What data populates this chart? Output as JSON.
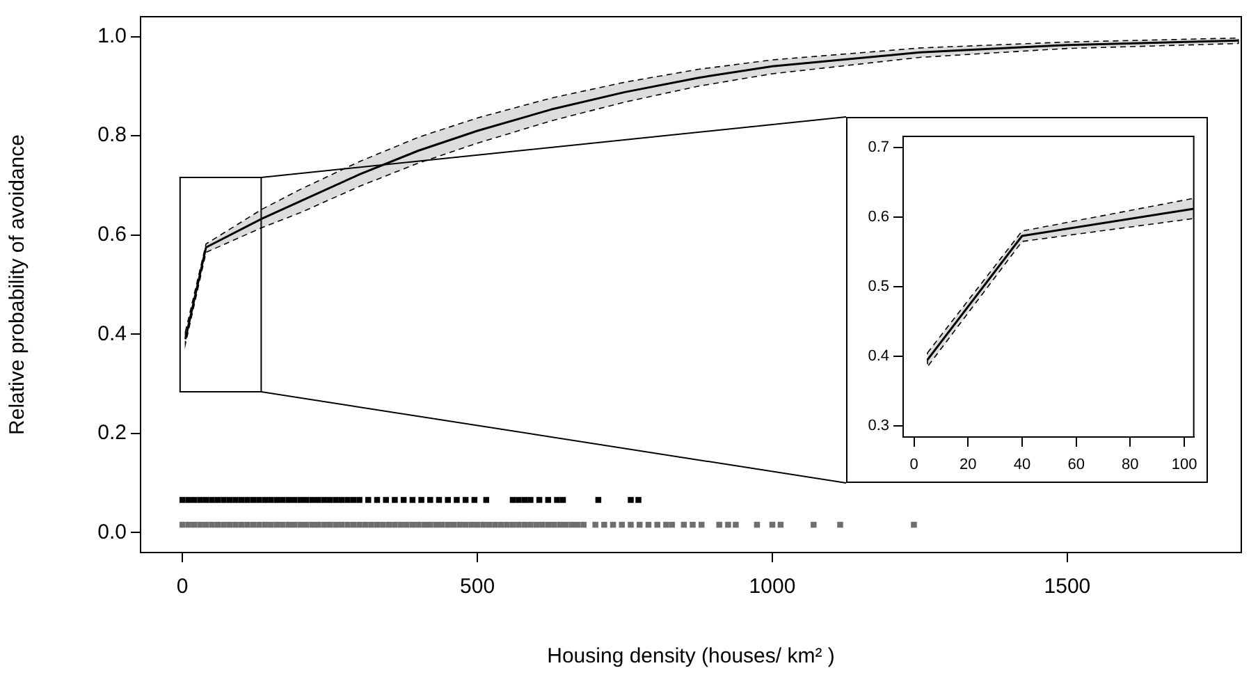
{
  "chart_data": [
    {
      "type": "line",
      "xlabel": "Housing density (houses/ km² )",
      "ylabel": "Relative probability of avoidance",
      "xlim": [
        -71,
        1795
      ],
      "ylim": [
        -0.04,
        1.04
      ],
      "xticks": [
        0,
        500,
        1000,
        1500
      ],
      "yticks": [
        {
          "value": 0,
          "label": "0.0"
        },
        0.2,
        0.4,
        0.6,
        0.8,
        {
          "value": 1,
          "label": "1.0"
        }
      ],
      "legend": false,
      "series": [
        {
          "color": "#000000",
          "x": [
            5,
            40,
            135,
            200,
            300,
            400,
            500,
            625,
            750,
            875,
            1000,
            1250,
            1500,
            1790
          ],
          "values": [
            0.39,
            0.575,
            0.633,
            0.668,
            0.722,
            0.77,
            0.81,
            0.853,
            0.888,
            0.917,
            0.94,
            0.968,
            0.983,
            0.992
          ],
          "lower": [
            0.38,
            0.565,
            0.615,
            0.645,
            0.698,
            0.745,
            0.785,
            0.83,
            0.868,
            0.9,
            0.925,
            0.958,
            0.976,
            0.986
          ],
          "upper": [
            0.405,
            0.582,
            0.652,
            0.692,
            0.748,
            0.797,
            0.836,
            0.876,
            0.908,
            0.934,
            0.953,
            0.977,
            0.989,
            0.997
          ]
        },
        {
          "type": "scatter",
          "color": "#000000",
          "x": [
            0,
            10,
            20,
            30,
            40,
            50,
            60,
            70,
            80,
            90,
            100,
            110,
            120,
            130,
            140,
            150,
            160,
            170,
            180,
            190,
            200,
            210,
            220,
            230,
            240,
            250,
            260,
            270,
            280,
            290,
            300,
            315,
            330,
            345,
            360,
            375,
            390,
            405,
            420,
            435,
            450,
            465,
            480,
            495,
            515,
            560,
            570,
            580,
            590,
            605,
            620,
            635,
            645,
            705,
            760,
            773
          ],
          "values": [
            0.066,
            0.066,
            0.066,
            0.066,
            0.066,
            0.066,
            0.066,
            0.066,
            0.066,
            0.066,
            0.066,
            0.066,
            0.066,
            0.066,
            0.066,
            0.066,
            0.066,
            0.066,
            0.066,
            0.066,
            0.066,
            0.066,
            0.066,
            0.066,
            0.066,
            0.066,
            0.066,
            0.066,
            0.066,
            0.066,
            0.066,
            0.066,
            0.066,
            0.066,
            0.066,
            0.066,
            0.066,
            0.066,
            0.066,
            0.066,
            0.066,
            0.066,
            0.066,
            0.066,
            0.066,
            0.066,
            0.066,
            0.066,
            0.066,
            0.066,
            0.066,
            0.066,
            0.066,
            0.066,
            0.066,
            0.066
          ]
        },
        {
          "type": "scatter",
          "color": "#6e6e6e",
          "x": [
            0,
            10,
            20,
            30,
            40,
            50,
            60,
            70,
            80,
            90,
            100,
            110,
            120,
            130,
            140,
            150,
            160,
            170,
            180,
            190,
            200,
            210,
            220,
            230,
            240,
            250,
            260,
            270,
            280,
            290,
            300,
            310,
            320,
            330,
            340,
            350,
            360,
            370,
            380,
            390,
            400,
            410,
            420,
            430,
            440,
            450,
            460,
            470,
            480,
            490,
            500,
            510,
            520,
            530,
            540,
            550,
            560,
            570,
            580,
            590,
            600,
            610,
            620,
            630,
            640,
            650,
            660,
            670,
            680,
            700,
            715,
            730,
            745,
            760,
            775,
            790,
            805,
            820,
            830,
            850,
            865,
            880,
            910,
            925,
            938,
            974,
            1000,
            1014,
            1070,
            1115,
            1240
          ],
          "values": [
            0.016,
            0.016,
            0.016,
            0.016,
            0.016,
            0.016,
            0.016,
            0.016,
            0.016,
            0.016,
            0.016,
            0.016,
            0.016,
            0.016,
            0.016,
            0.016,
            0.016,
            0.016,
            0.016,
            0.016,
            0.016,
            0.016,
            0.016,
            0.016,
            0.016,
            0.016,
            0.016,
            0.016,
            0.016,
            0.016,
            0.016,
            0.016,
            0.016,
            0.016,
            0.016,
            0.016,
            0.016,
            0.016,
            0.016,
            0.016,
            0.016,
            0.016,
            0.016,
            0.016,
            0.016,
            0.016,
            0.016,
            0.016,
            0.016,
            0.016,
            0.016,
            0.016,
            0.016,
            0.016,
            0.016,
            0.016,
            0.016,
            0.016,
            0.016,
            0.016,
            0.016,
            0.016,
            0.016,
            0.016,
            0.016,
            0.016,
            0.016,
            0.016,
            0.016,
            0.016,
            0.016,
            0.016,
            0.016,
            0.016,
            0.016,
            0.016,
            0.016,
            0.016,
            0.016,
            0.016,
            0.016,
            0.016,
            0.016,
            0.016,
            0.016,
            0.016,
            0.016,
            0.016,
            0.016,
            0.016,
            0.016
          ]
        }
      ]
    },
    {
      "type": "line",
      "xlim": [
        -4,
        103.5
      ],
      "ylim": [
        0.284,
        0.716
      ],
      "xticks": [
        0,
        20,
        40,
        60,
        80,
        100
      ],
      "yticks": [
        0.3,
        0.4,
        0.5,
        0.6,
        0.7
      ],
      "legend": false,
      "series": [
        {
          "color": "#000000",
          "x": [
            5,
            40,
            103.5
          ],
          "values": [
            0.395,
            0.573,
            0.612
          ],
          "lower": [
            0.385,
            0.565,
            0.598
          ],
          "upper": [
            0.405,
            0.58,
            0.627
          ]
        }
      ]
    }
  ]
}
